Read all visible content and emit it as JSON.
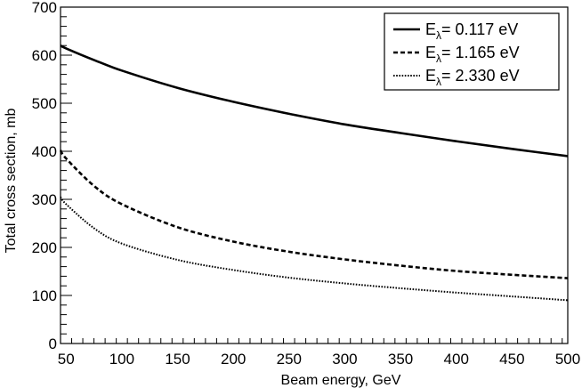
{
  "chart_data": {
    "type": "line",
    "xlabel": "Beam energy, GeV",
    "ylabel": "Total cross section, mb",
    "xlim": [
      45,
      500
    ],
    "ylim": [
      0,
      700
    ],
    "x_ticks": [
      50,
      100,
      150,
      200,
      250,
      300,
      350,
      400,
      450,
      500
    ],
    "y_ticks": [
      0,
      100,
      200,
      300,
      400,
      500,
      600,
      700
    ],
    "grid": false,
    "legend_position": "top-right",
    "series": [
      {
        "name_main": "E",
        "name_sub": "λ",
        "name_value": "= 0.117 eV",
        "style": "solid",
        "x": [
          45,
          50,
          75,
          100,
          150,
          200,
          250,
          300,
          350,
          400,
          450,
          500
        ],
        "y": [
          620,
          614,
          590,
          568,
          532,
          503,
          478,
          456,
          438,
          421,
          405,
          390
        ]
      },
      {
        "name_main": "E",
        "name_sub": "λ",
        "name_value": "= 1.165 eV",
        "style": "dashed",
        "x": [
          45,
          50,
          75,
          100,
          150,
          200,
          250,
          300,
          350,
          400,
          450,
          500
        ],
        "y": [
          402,
          385,
          328,
          290,
          242,
          212,
          191,
          175,
          162,
          151,
          143,
          136
        ]
      },
      {
        "name_main": "E",
        "name_sub": "λ",
        "name_value": "= 2.330 eV",
        "style": "dotted",
        "x": [
          45,
          50,
          75,
          100,
          150,
          200,
          250,
          300,
          350,
          400,
          450,
          500
        ],
        "y": [
          305,
          290,
          240,
          208,
          174,
          153,
          137,
          125,
          115,
          106,
          98,
          90
        ]
      }
    ]
  }
}
